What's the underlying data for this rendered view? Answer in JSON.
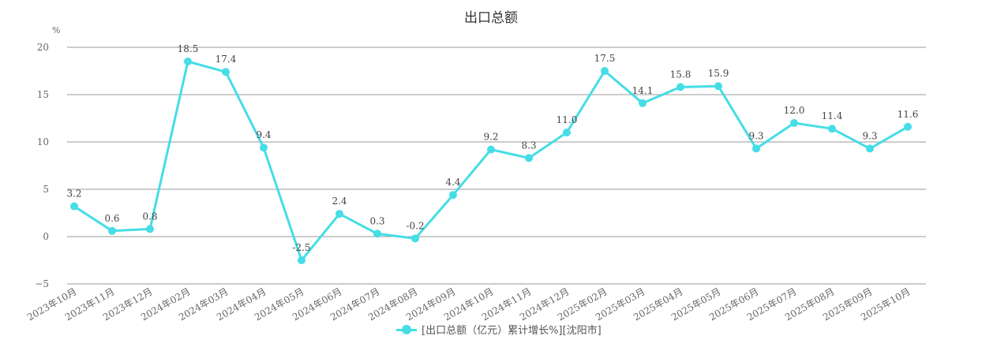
{
  "chart_data": {
    "type": "line",
    "title": "出口总额",
    "ylabel": "%",
    "xlabel": "",
    "ylim": [
      -5,
      20
    ],
    "yticks": [
      -5,
      0,
      5,
      10,
      15,
      20
    ],
    "grid": true,
    "legend_position": "bottom-center",
    "categories": [
      "2023年10月",
      "2023年11月",
      "2023年12月",
      "2024年02月",
      "2024年03月",
      "2024年04月",
      "2024年05月",
      "2024年06月",
      "2024年07月",
      "2024年08月",
      "2024年09月",
      "2024年10月",
      "2024年11月",
      "2024年12月",
      "2025年02月",
      "2025年03月",
      "2025年04月",
      "2025年05月",
      "2025年06月",
      "2025年07月",
      "2025年08月",
      "2025年09月",
      "2025年10月"
    ],
    "series": [
      {
        "name": "[出口总额（亿元）累计增长%][沈阳市]",
        "color": "#45dde6",
        "values": [
          3.2,
          0.6,
          0.8,
          18.5,
          17.4,
          9.4,
          -2.5,
          2.4,
          0.3,
          -0.2,
          4.4,
          9.2,
          8.3,
          11.0,
          17.5,
          14.1,
          15.8,
          15.9,
          9.3,
          12.0,
          11.4,
          9.3,
          11.6
        ]
      }
    ]
  }
}
